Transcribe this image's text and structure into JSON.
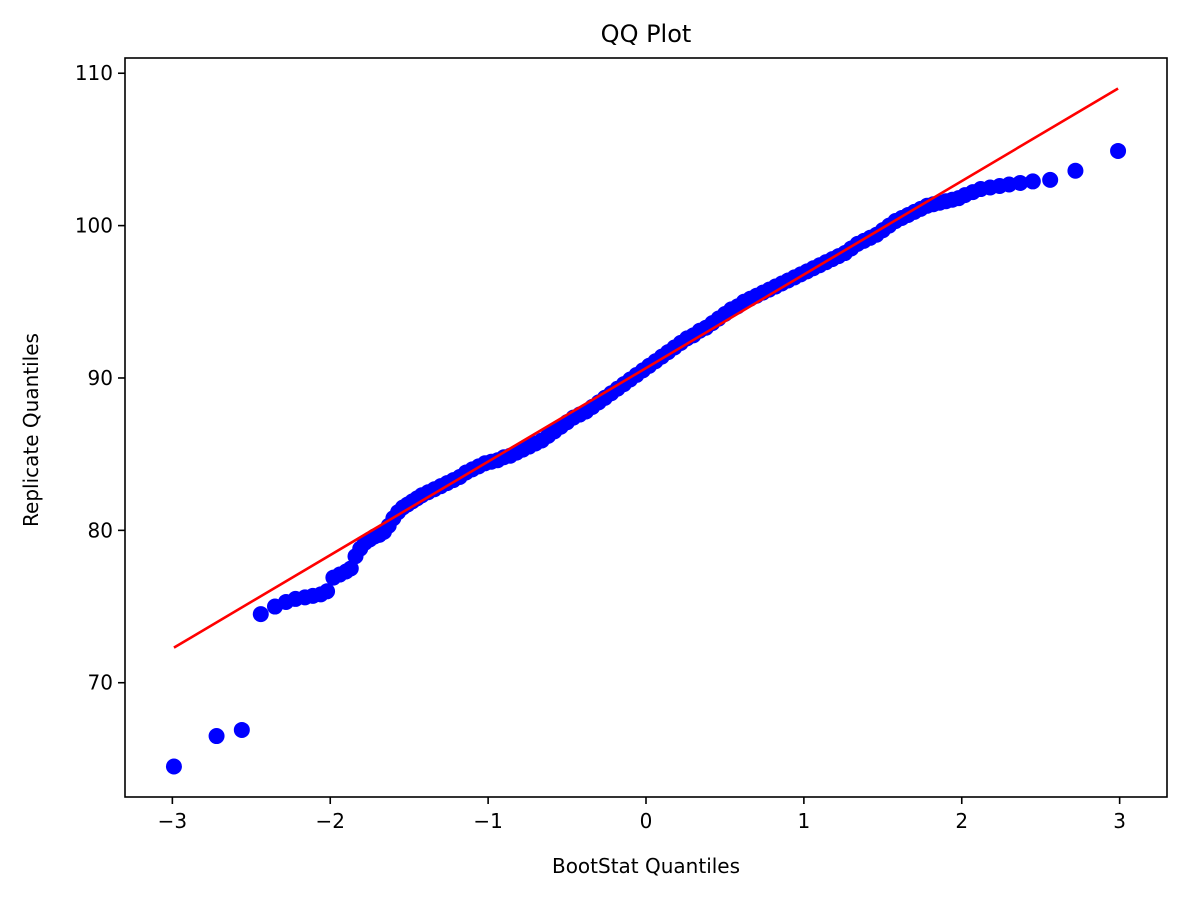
{
  "chart_data": {
    "type": "scatter",
    "title": "QQ Plot",
    "xlabel": "BootStat Quantiles",
    "ylabel": "Replicate Quantiles",
    "xlim": [
      -3.3,
      3.3
    ],
    "ylim": [
      62.5,
      111
    ],
    "xticks": [
      -3,
      -2,
      -1,
      0,
      1,
      2,
      3
    ],
    "xtick_labels": [
      "−3",
      "−2",
      "−1",
      "0",
      "1",
      "2",
      "3"
    ],
    "yticks": [
      70,
      80,
      90,
      100,
      110
    ],
    "ytick_labels": [
      "70",
      "80",
      "90",
      "100",
      "110"
    ],
    "grid": false,
    "series": [
      {
        "kind": "points",
        "color": "#0000ff",
        "points": [
          [
            -2.99,
            64.5
          ],
          [
            -2.72,
            66.5
          ],
          [
            -2.56,
            66.9
          ],
          [
            -2.44,
            74.5
          ],
          [
            -2.35,
            75.0
          ],
          [
            -2.28,
            75.3
          ],
          [
            -2.22,
            75.5
          ],
          [
            -2.16,
            75.6
          ],
          [
            -2.11,
            75.7
          ],
          [
            -2.06,
            75.8
          ],
          [
            -2.02,
            76.0
          ],
          [
            -1.98,
            76.9
          ],
          [
            -1.94,
            77.1
          ],
          [
            -1.9,
            77.3
          ],
          [
            -1.87,
            77.5
          ],
          [
            -1.84,
            78.3
          ],
          [
            -1.81,
            78.8
          ],
          [
            -1.78,
            79.2
          ],
          [
            -1.75,
            79.4
          ],
          [
            -1.72,
            79.6
          ],
          [
            -1.69,
            79.7
          ],
          [
            -1.66,
            79.9
          ],
          [
            -1.63,
            80.3
          ],
          [
            -1.6,
            80.8
          ],
          [
            -1.57,
            81.2
          ],
          [
            -1.54,
            81.5
          ],
          [
            -1.51,
            81.7
          ],
          [
            -1.48,
            81.9
          ],
          [
            -1.45,
            82.1
          ],
          [
            -1.42,
            82.3
          ],
          [
            -1.38,
            82.5
          ],
          [
            -1.34,
            82.7
          ],
          [
            -1.3,
            82.9
          ],
          [
            -1.26,
            83.1
          ],
          [
            -1.22,
            83.3
          ],
          [
            -1.18,
            83.5
          ],
          [
            -1.14,
            83.8
          ],
          [
            -1.1,
            84.0
          ],
          [
            -1.06,
            84.2
          ],
          [
            -1.02,
            84.4
          ],
          [
            -0.98,
            84.5
          ],
          [
            -0.94,
            84.6
          ],
          [
            -0.9,
            84.8
          ],
          [
            -0.86,
            84.9
          ],
          [
            -0.82,
            85.1
          ],
          [
            -0.78,
            85.3
          ],
          [
            -0.74,
            85.5
          ],
          [
            -0.7,
            85.7
          ],
          [
            -0.66,
            85.9
          ],
          [
            -0.62,
            86.2
          ],
          [
            -0.58,
            86.5
          ],
          [
            -0.54,
            86.8
          ],
          [
            -0.5,
            87.1
          ],
          [
            -0.46,
            87.4
          ],
          [
            -0.42,
            87.6
          ],
          [
            -0.38,
            87.8
          ],
          [
            -0.34,
            88.1
          ],
          [
            -0.3,
            88.4
          ],
          [
            -0.26,
            88.7
          ],
          [
            -0.22,
            89.0
          ],
          [
            -0.18,
            89.3
          ],
          [
            -0.14,
            89.6
          ],
          [
            -0.1,
            89.9
          ],
          [
            -0.06,
            90.2
          ],
          [
            -0.02,
            90.5
          ],
          [
            0.02,
            90.8
          ],
          [
            0.06,
            91.1
          ],
          [
            0.1,
            91.4
          ],
          [
            0.14,
            91.7
          ],
          [
            0.18,
            92.0
          ],
          [
            0.22,
            92.3
          ],
          [
            0.26,
            92.6
          ],
          [
            0.3,
            92.8
          ],
          [
            0.34,
            93.1
          ],
          [
            0.38,
            93.3
          ],
          [
            0.42,
            93.6
          ],
          [
            0.46,
            93.9
          ],
          [
            0.5,
            94.2
          ],
          [
            0.54,
            94.5
          ],
          [
            0.58,
            94.7
          ],
          [
            0.62,
            95.0
          ],
          [
            0.66,
            95.2
          ],
          [
            0.7,
            95.4
          ],
          [
            0.74,
            95.6
          ],
          [
            0.78,
            95.8
          ],
          [
            0.82,
            96.0
          ],
          [
            0.86,
            96.2
          ],
          [
            0.9,
            96.4
          ],
          [
            0.94,
            96.6
          ],
          [
            0.98,
            96.8
          ],
          [
            1.02,
            97.0
          ],
          [
            1.06,
            97.2
          ],
          [
            1.1,
            97.4
          ],
          [
            1.14,
            97.6
          ],
          [
            1.18,
            97.8
          ],
          [
            1.22,
            98.0
          ],
          [
            1.26,
            98.2
          ],
          [
            1.3,
            98.5
          ],
          [
            1.34,
            98.8
          ],
          [
            1.38,
            99.0
          ],
          [
            1.42,
            99.2
          ],
          [
            1.46,
            99.4
          ],
          [
            1.5,
            99.7
          ],
          [
            1.54,
            100.0
          ],
          [
            1.58,
            100.3
          ],
          [
            1.62,
            100.5
          ],
          [
            1.66,
            100.7
          ],
          [
            1.7,
            100.9
          ],
          [
            1.74,
            101.1
          ],
          [
            1.78,
            101.3
          ],
          [
            1.82,
            101.4
          ],
          [
            1.86,
            101.5
          ],
          [
            1.9,
            101.6
          ],
          [
            1.94,
            101.7
          ],
          [
            1.98,
            101.8
          ],
          [
            2.02,
            102.0
          ],
          [
            2.07,
            102.2
          ],
          [
            2.12,
            102.4
          ],
          [
            2.18,
            102.5
          ],
          [
            2.24,
            102.6
          ],
          [
            2.3,
            102.7
          ],
          [
            2.37,
            102.8
          ],
          [
            2.45,
            102.9
          ],
          [
            2.56,
            103.0
          ],
          [
            2.72,
            103.6
          ],
          [
            2.99,
            104.9
          ]
        ]
      },
      {
        "kind": "line",
        "color": "#ff0000",
        "points": [
          [
            -2.99,
            72.3
          ],
          [
            2.99,
            109.0
          ]
        ]
      }
    ]
  }
}
